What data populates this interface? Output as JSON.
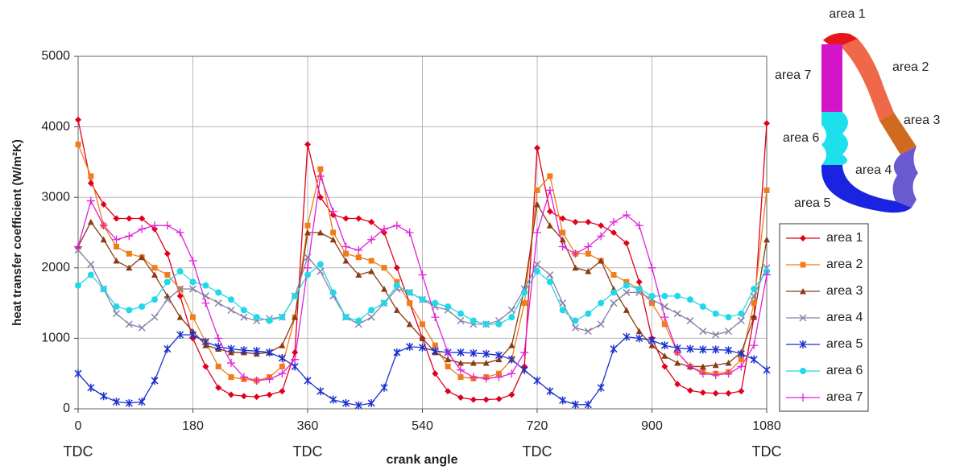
{
  "chart_data": {
    "type": "line",
    "x_label": "crank angle",
    "y_label": "heat transfer coefficient (W/m²K)",
    "annotations": [
      "TDC",
      "TDC",
      "TDC",
      "TDC"
    ],
    "annotation_x": [
      0,
      360,
      720,
      1080
    ],
    "xlim": [
      0,
      1080
    ],
    "xticks": [
      0,
      180,
      360,
      540,
      720,
      900,
      1080
    ],
    "ylim": [
      0,
      5000
    ],
    "yticks": [
      0,
      1000,
      2000,
      3000,
      4000,
      5000
    ],
    "grid": true,
    "legend": "right",
    "x": [
      0,
      20,
      40,
      60,
      80,
      100,
      120,
      140,
      160,
      180,
      200,
      220,
      240,
      260,
      280,
      300,
      320,
      340,
      360,
      380,
      400,
      420,
      440,
      460,
      480,
      500,
      520,
      540,
      560,
      580,
      600,
      620,
      640,
      660,
      680,
      700,
      720,
      740,
      760,
      780,
      800,
      820,
      840,
      860,
      880,
      900,
      920,
      940,
      960,
      980,
      1000,
      1020,
      1040,
      1060,
      1080
    ],
    "series": [
      {
        "name": "area 1",
        "color": "#e0001b",
        "marker": "diamond",
        "values": [
          4100,
          3200,
          2900,
          2700,
          2700,
          2700,
          2550,
          2200,
          1600,
          1000,
          600,
          300,
          200,
          180,
          170,
          200,
          250,
          800,
          3750,
          3000,
          2750,
          2700,
          2700,
          2650,
          2500,
          2000,
          1500,
          1000,
          500,
          250,
          160,
          130,
          130,
          140,
          200,
          600,
          3700,
          2800,
          2700,
          2650,
          2650,
          2600,
          2500,
          2350,
          1800,
          1000,
          600,
          350,
          260,
          230,
          220,
          220,
          250,
          1300,
          4050
        ]
      },
      {
        "name": "area 2",
        "color": "#f07c1a",
        "marker": "square",
        "values": [
          3750,
          3300,
          2600,
          2300,
          2200,
          2150,
          2000,
          1900,
          1700,
          1300,
          950,
          600,
          450,
          420,
          400,
          450,
          600,
          1300,
          2600,
          3400,
          2500,
          2200,
          2150,
          2100,
          2000,
          1800,
          1500,
          1200,
          900,
          600,
          450,
          430,
          450,
          500,
          700,
          1500,
          3100,
          3300,
          2500,
          2200,
          2200,
          2100,
          1900,
          1800,
          1700,
          1500,
          1200,
          800,
          600,
          520,
          500,
          520,
          700,
          1500,
          3100
        ]
      },
      {
        "name": "area 3",
        "color": "#8b3a12",
        "marker": "triangle",
        "values": [
          2300,
          2650,
          2400,
          2100,
          2000,
          2150,
          1900,
          1600,
          1300,
          1100,
          900,
          850,
          800,
          800,
          780,
          800,
          900,
          1300,
          2500,
          2500,
          2400,
          2100,
          1900,
          1950,
          1700,
          1400,
          1200,
          1000,
          800,
          700,
          650,
          650,
          650,
          700,
          900,
          1700,
          2900,
          2600,
          2400,
          2000,
          1950,
          2100,
          1700,
          1400,
          1100,
          900,
          750,
          650,
          600,
          600,
          620,
          650,
          800,
          1300,
          2400
        ]
      },
      {
        "name": "area 4",
        "color": "#8a80a8",
        "marker": "x",
        "values": [
          2250,
          2050,
          1700,
          1350,
          1200,
          1150,
          1300,
          1550,
          1700,
          1700,
          1600,
          1500,
          1400,
          1300,
          1250,
          1280,
          1300,
          1600,
          2150,
          1950,
          1600,
          1300,
          1200,
          1300,
          1500,
          1700,
          1650,
          1550,
          1450,
          1400,
          1250,
          1200,
          1200,
          1250,
          1400,
          1700,
          2050,
          1900,
          1500,
          1150,
          1100,
          1200,
          1500,
          1650,
          1650,
          1550,
          1450,
          1350,
          1250,
          1100,
          1050,
          1100,
          1250,
          1600,
          2000
        ]
      },
      {
        "name": "area 5",
        "color": "#1a2fd0",
        "marker": "star",
        "values": [
          500,
          300,
          180,
          100,
          80,
          100,
          400,
          850,
          1050,
          1050,
          950,
          880,
          850,
          830,
          820,
          800,
          720,
          600,
          400,
          250,
          130,
          80,
          50,
          80,
          300,
          800,
          880,
          870,
          820,
          800,
          800,
          790,
          780,
          760,
          700,
          550,
          400,
          250,
          120,
          60,
          60,
          300,
          850,
          1020,
          1000,
          970,
          900,
          860,
          850,
          840,
          840,
          830,
          780,
          700,
          550
        ]
      },
      {
        "name": "area 6",
        "color": "#22d8e8",
        "marker": "circle",
        "values": [
          1750,
          1900,
          1700,
          1450,
          1400,
          1450,
          1550,
          1800,
          1950,
          1800,
          1750,
          1650,
          1550,
          1400,
          1300,
          1250,
          1300,
          1600,
          1900,
          2050,
          1650,
          1300,
          1250,
          1400,
          1500,
          1750,
          1650,
          1550,
          1500,
          1450,
          1350,
          1250,
          1200,
          1200,
          1300,
          1650,
          1950,
          1800,
          1400,
          1250,
          1350,
          1500,
          1650,
          1750,
          1700,
          1600,
          1600,
          1600,
          1550,
          1450,
          1350,
          1300,
          1350,
          1700,
          1950
        ]
      },
      {
        "name": "area 7",
        "color": "#e020d8",
        "marker": "plus",
        "values": [
          2300,
          2950,
          2600,
          2400,
          2450,
          2550,
          2600,
          2600,
          2500,
          2100,
          1500,
          1000,
          650,
          450,
          400,
          420,
          500,
          700,
          2000,
          3300,
          2800,
          2300,
          2250,
          2400,
          2550,
          2600,
          2500,
          1900,
          1300,
          800,
          550,
          450,
          430,
          450,
          500,
          800,
          2500,
          3100,
          2300,
          2200,
          2300,
          2450,
          2650,
          2750,
          2600,
          2000,
          1300,
          800,
          600,
          500,
          480,
          500,
          600,
          900,
          1900
        ]
      }
    ]
  },
  "diagram": {
    "labels": [
      "area 1",
      "area 2",
      "area 3",
      "area 4",
      "area 5",
      "area 6",
      "area 7"
    ]
  }
}
